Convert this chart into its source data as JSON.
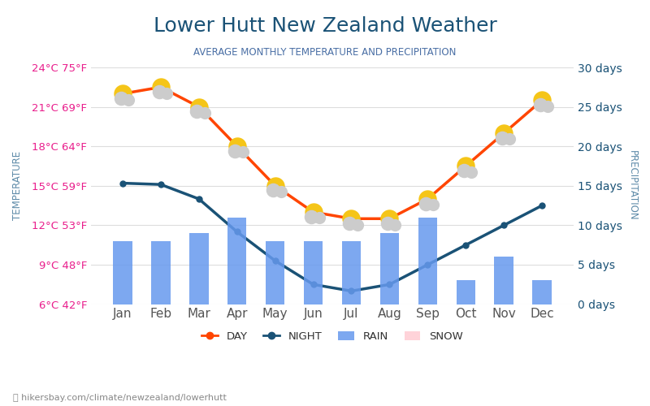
{
  "title": "Lower Hutt New Zealand Weather",
  "subtitle": "AVERAGE MONTHLY TEMPERATURE AND PRECIPITATION",
  "months": [
    "Jan",
    "Feb",
    "Mar",
    "Apr",
    "May",
    "Jun",
    "Jul",
    "Aug",
    "Sep",
    "Oct",
    "Nov",
    "Dec"
  ],
  "day_temp": [
    22,
    22.5,
    21,
    18,
    15,
    13,
    12.5,
    12.5,
    14,
    16.5,
    19,
    21.5
  ],
  "night_temp": [
    15.2,
    15.1,
    14.0,
    11.5,
    9.3,
    7.5,
    7.0,
    7.5,
    9.0,
    10.5,
    12.0,
    13.5
  ],
  "rain_days": [
    8,
    8,
    9,
    11,
    8,
    8,
    8,
    9,
    11,
    3,
    6,
    3
  ],
  "ylim_left": [
    6,
    24
  ],
  "ylim_right": [
    0,
    30
  ],
  "yticks_left_c": [
    6,
    9,
    12,
    15,
    18,
    21,
    24
  ],
  "yticks_left_f": [
    42,
    48,
    53,
    59,
    64,
    69,
    75
  ],
  "yticks_right": [
    0,
    5,
    10,
    15,
    20,
    25,
    30
  ],
  "bar_color": "#6699ee",
  "day_color": "#ff4500",
  "night_color": "#1a5276",
  "title_color": "#1a5276",
  "subtitle_color": "#4a6fa5",
  "left_label_color": "#e91e8c",
  "right_label_color": "#1a5276",
  "temp_label_color": "#5d8aa8",
  "precip_label_color": "#5d8aa8",
  "background_color": "#ffffff",
  "grid_color": "#dddddd",
  "footer": "hikersbay.com/climate/newzealand/lowerhutt"
}
